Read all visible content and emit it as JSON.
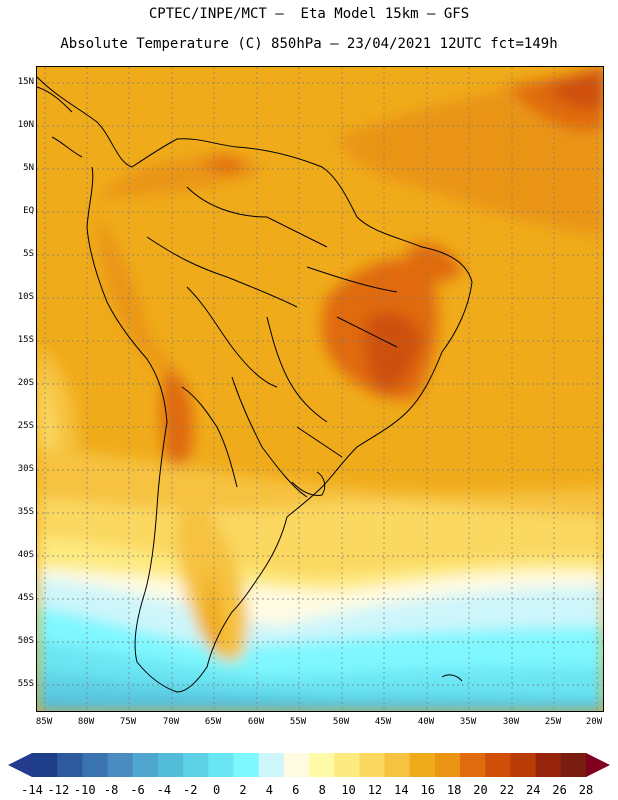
{
  "header": {
    "title_line1": "CPTEC/INPE/MCT —  Eta Model 15km — GFS",
    "title_line2": "Absolute Temperature (C) 850hPa — 23/04/2021 12UTC fct=149h"
  },
  "map": {
    "lat_labels": [
      "15N",
      "10N",
      "5N",
      "EQ",
      "5S",
      "10S",
      "15S",
      "20S",
      "25S",
      "30S",
      "35S",
      "40S",
      "45S",
      "50S",
      "55S"
    ],
    "lon_labels": [
      "85W",
      "80W",
      "75W",
      "70W",
      "65W",
      "60W",
      "55W",
      "50W",
      "45W",
      "40W",
      "35W",
      "30W",
      "25W",
      "20W"
    ]
  },
  "colorbar": {
    "labels": [
      "-14",
      "-12",
      "-10",
      "-8",
      "-6",
      "-4",
      "-2",
      "0",
      "2",
      "4",
      "6",
      "8",
      "10",
      "12",
      "14",
      "16",
      "18",
      "20",
      "22",
      "24",
      "26",
      "28"
    ],
    "colors": [
      "#1f3e8a",
      "#2d5a9e",
      "#3a74b0",
      "#4a8cc0",
      "#4fa6cf",
      "#52bcd9",
      "#5dd0e6",
      "#6ae5f2",
      "#7ff7ff",
      "#cdf6fb",
      "#fffbe3",
      "#fffaa8",
      "#fdea80",
      "#fbd860",
      "#f6c240",
      "#f0ab1a",
      "#ea9414",
      "#e06a0e",
      "#cf4f08",
      "#b93c06",
      "#97240c",
      "#7a1c10"
    ],
    "under_color": "#233b8c",
    "over_color": "#800020"
  }
}
